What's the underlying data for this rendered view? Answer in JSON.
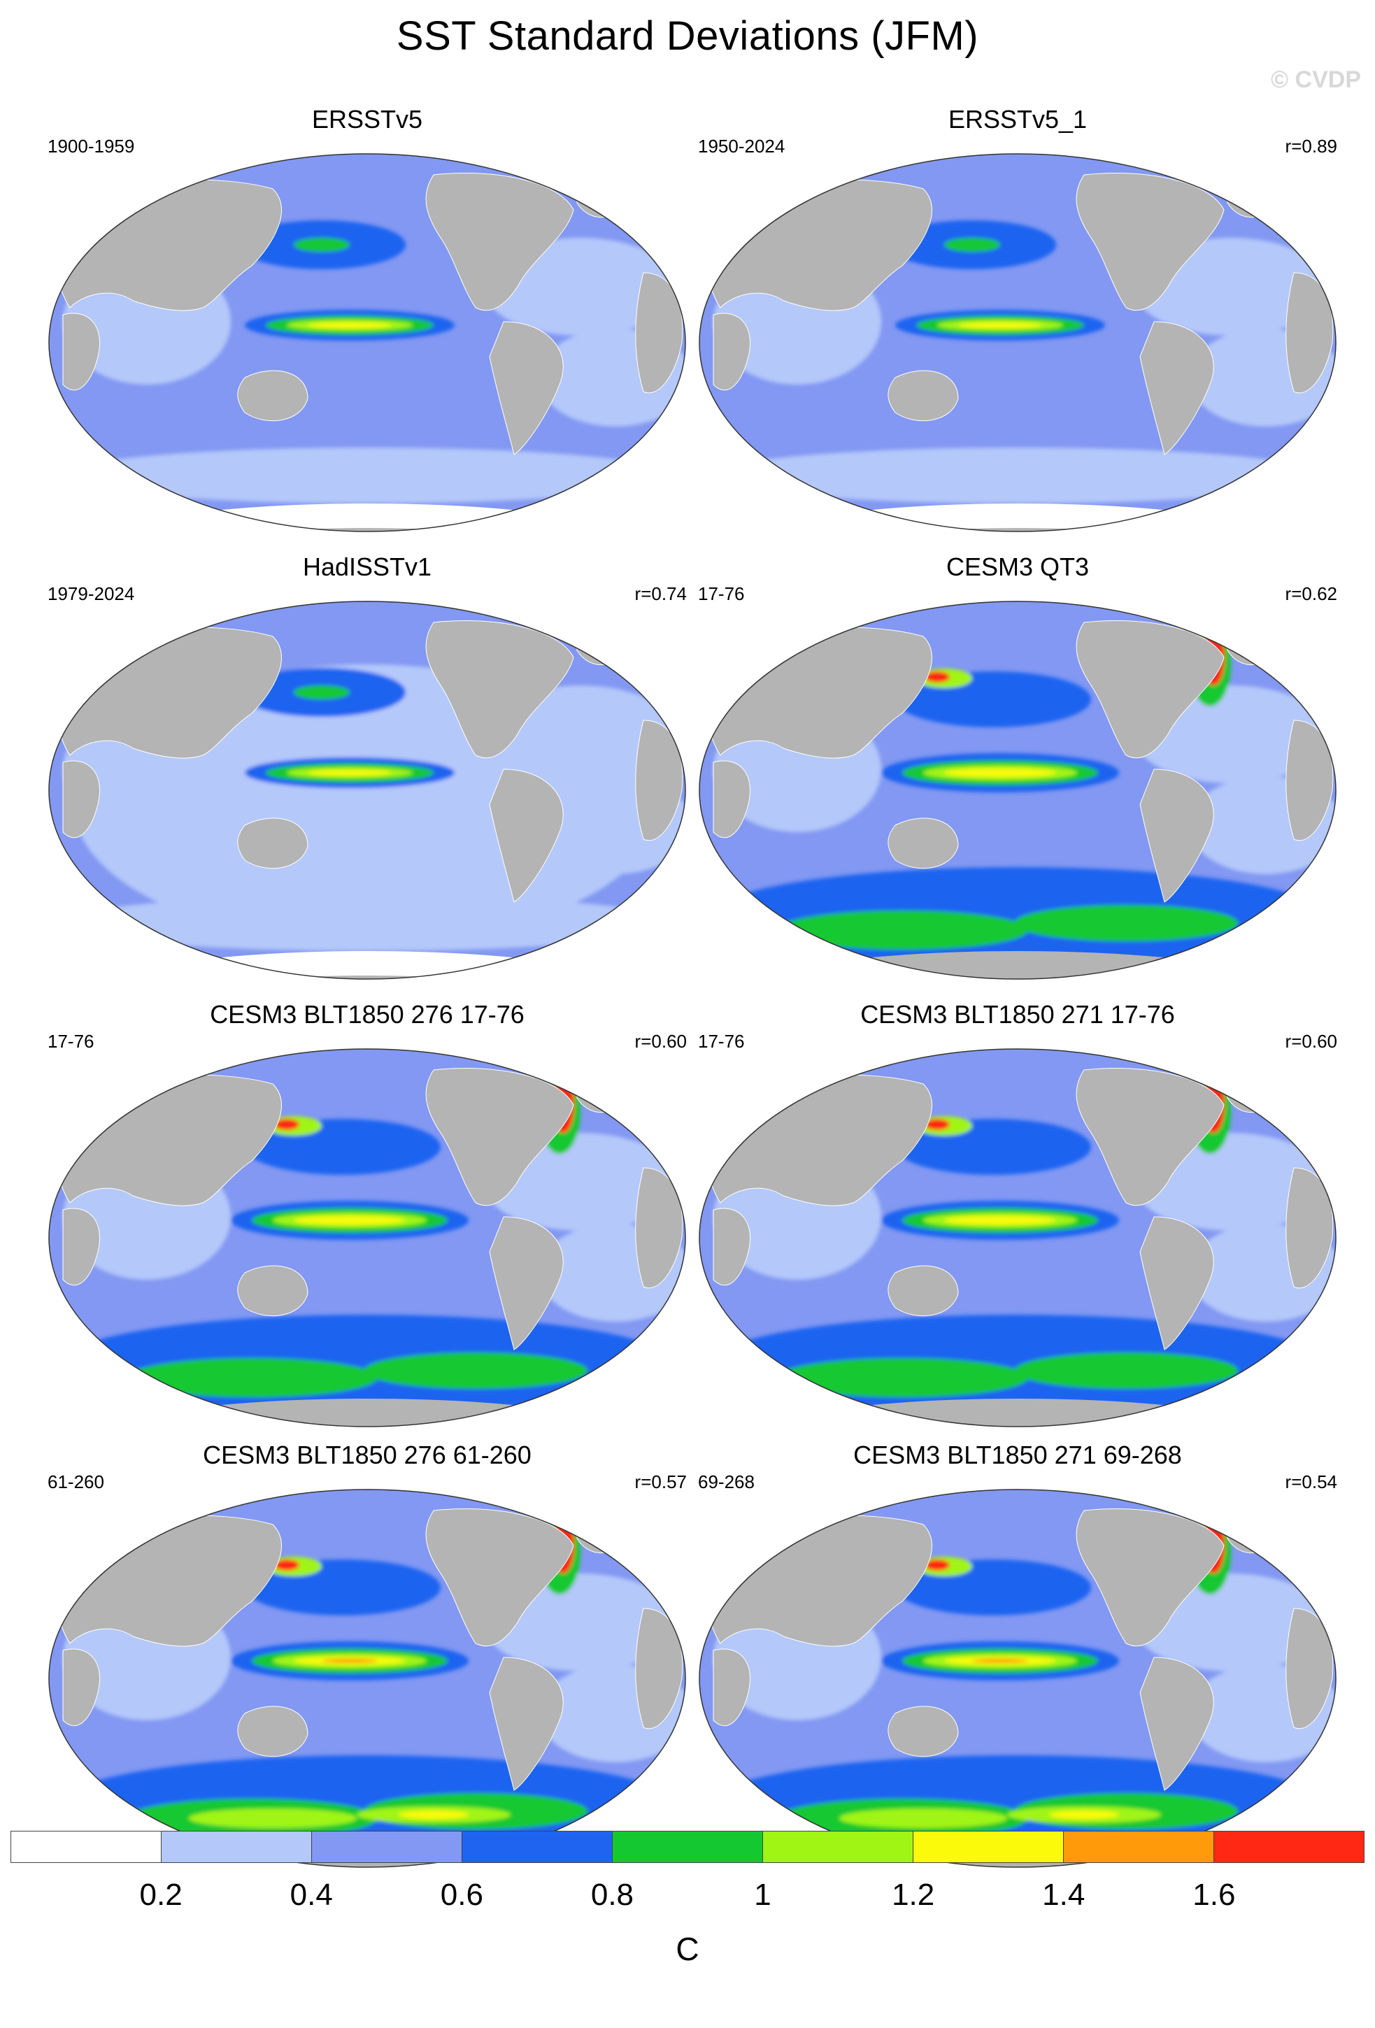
{
  "figure": {
    "title": "SST Standard Deviations (JFM)",
    "watermark": "© CVDP"
  },
  "panels": [
    {
      "name": "ERSSTv5",
      "period": "1900-1959",
      "corr": ""
    },
    {
      "name": "ERSSTv5_1",
      "period": "1950-2024",
      "corr": "r=0.89"
    },
    {
      "name": "HadISSTv1",
      "period": "1979-2024",
      "corr": "r=0.74"
    },
    {
      "name": "CESM3 QT3",
      "period": "17-76",
      "corr": "r=0.62"
    },
    {
      "name": "CESM3 BLT1850 276 17-76",
      "period": "17-76",
      "corr": "r=0.60"
    },
    {
      "name": "CESM3 BLT1850 271 17-76",
      "period": "17-76",
      "corr": "r=0.60"
    },
    {
      "name": "CESM3 BLT1850 276 61-260",
      "period": "61-260",
      "corr": "r=0.57"
    },
    {
      "name": "CESM3 BLT1850 271 69-268",
      "period": "69-268",
      "corr": "r=0.54"
    }
  ],
  "colorbar": {
    "unit": "C",
    "colors": [
      "#ffffff",
      "#b4c8fa",
      "#8298f2",
      "#1e64f0",
      "#14c832",
      "#a0f514",
      "#fafa0a",
      "#ff9a0a",
      "#ff2814"
    ],
    "ticks": [
      "0.2",
      "0.4",
      "0.6",
      "0.8",
      "1",
      "1.2",
      "1.4",
      "1.6"
    ]
  },
  "palette": {
    "land": "#b4b4b4",
    "ocean_base": "#8298f2"
  }
}
